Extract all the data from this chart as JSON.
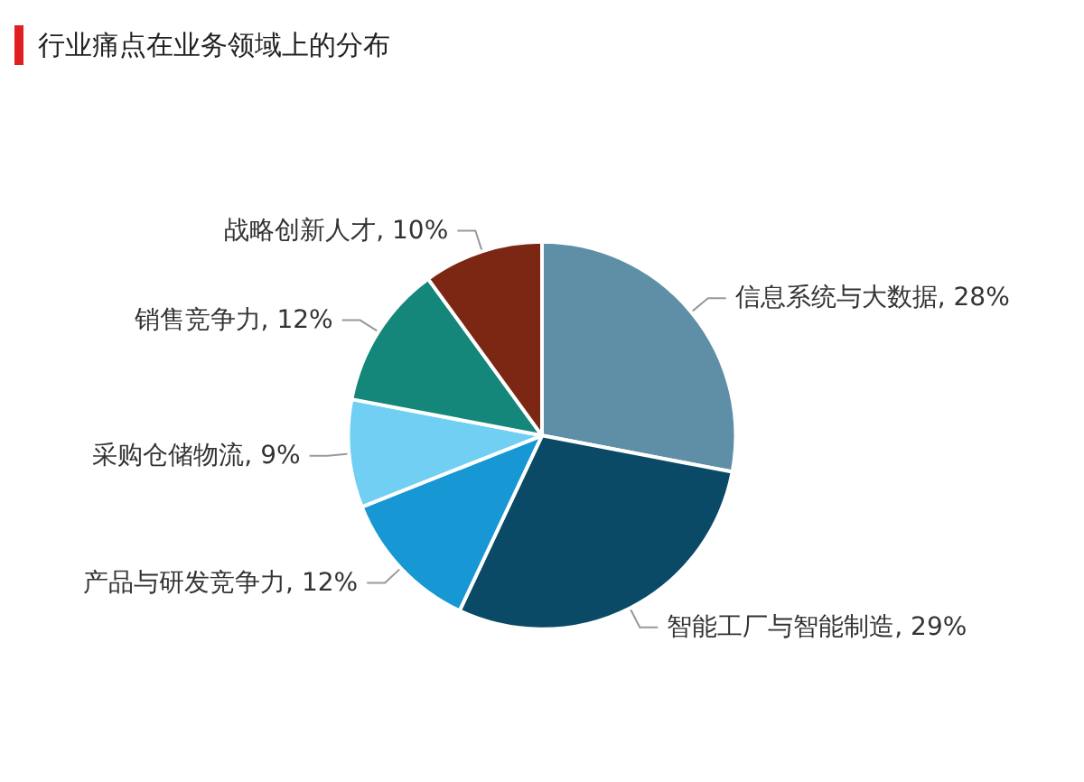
{
  "chart_data": {
    "type": "pie",
    "title": "行业痛点在业务领域上的分布",
    "categories": [
      "信息系统与大数据",
      "智能工厂与智能制造",
      "产品与研发竞争力",
      "采购仓储物流",
      "销售竞争力",
      "战略创新人才"
    ],
    "values": [
      28,
      29,
      12,
      9,
      12,
      10
    ],
    "value_labels": [
      "28%",
      "29%",
      "12%",
      "9%",
      "12%",
      "10%"
    ],
    "colors": [
      "#5e8fa6",
      "#0b4a66",
      "#1797d3",
      "#70cff3",
      "#14877a",
      "#7b2713"
    ],
    "data_labels": true,
    "legend": false
  }
}
